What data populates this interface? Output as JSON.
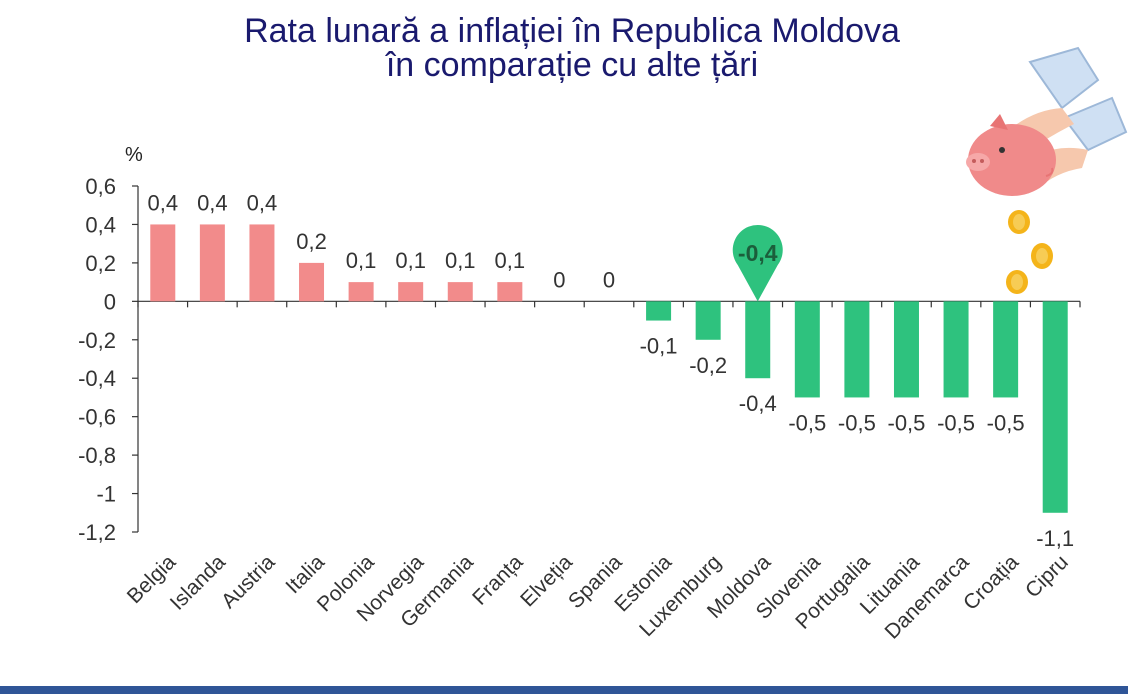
{
  "header": {
    "title_line1": "Rata lunară a inflației în Republica Moldova",
    "title_line2": "în comparație cu alte țări"
  },
  "colors": {
    "positive_bar": "#f28b8b",
    "negative_bar": "#2ec27e",
    "highlight_marker": "#2ec27e",
    "title": "#1a1a6e",
    "bottom_bar": "#2f5597"
  },
  "decoration": {
    "illustration": "piggy-bank-with-falling-coins-icon"
  },
  "chart_data": {
    "type": "bar",
    "title": "Rata lunară a inflației în Republica Moldova în comparație cu alte țări",
    "ylabel": "%",
    "ylim": [
      -1.2,
      0.6
    ],
    "yticks": [
      0.6,
      0.4,
      0.2,
      0,
      -0.2,
      -0.4,
      -0.6,
      -0.8,
      -1,
      -1.2
    ],
    "ytick_labels": [
      "0,6",
      "0,4",
      "0,2",
      "0",
      "-0,2",
      "-0,4",
      "-0,6",
      "-0,8",
      "-1",
      "-1,2"
    ],
    "grid": false,
    "legend": "none",
    "highlight": "Moldova",
    "highlight_label": "-0,4",
    "categories": [
      "Belgia",
      "Islanda",
      "Austria",
      "Italia",
      "Polonia",
      "Norvegia",
      "Germania",
      "Franța",
      "Elveția",
      "Spania",
      "Estonia",
      "Luxemburg",
      "Moldova",
      "Slovenia",
      "Portugalia",
      "Lituania",
      "Danemarca",
      "Croația",
      "Cipru"
    ],
    "values": [
      0.4,
      0.4,
      0.4,
      0.2,
      0.1,
      0.1,
      0.1,
      0.1,
      0,
      0,
      -0.1,
      -0.2,
      -0.4,
      -0.5,
      -0.5,
      -0.5,
      -0.5,
      -0.5,
      -1.1
    ],
    "labels": [
      "0,4",
      "0,4",
      "0,4",
      "0,2",
      "0,1",
      "0,1",
      "0,1",
      "0,1",
      "0",
      "0",
      "-0,1",
      "-0,2",
      "-0,4",
      "-0,5",
      "-0,5",
      "-0,5",
      "-0,5",
      "-0,5",
      "-1,1"
    ]
  }
}
